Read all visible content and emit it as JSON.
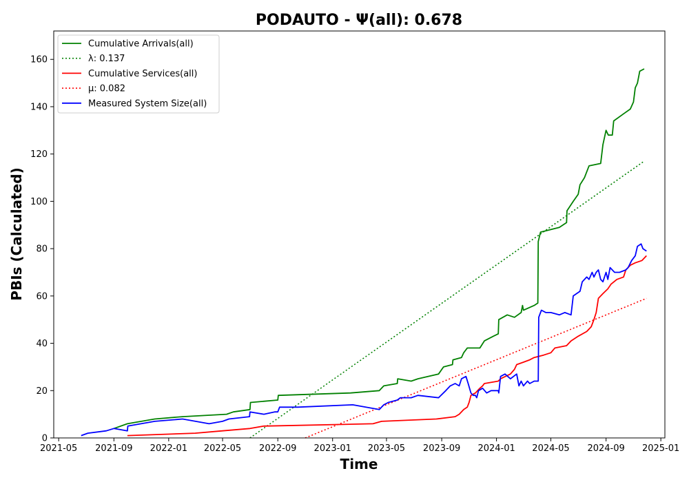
{
  "chart_data": {
    "type": "line",
    "title": "PODAUTO -  Ψ(all): 0.678",
    "xlabel": "Time",
    "ylabel": "PBIs (Calculated)",
    "x_ticks": [
      "2021-05",
      "2021-09",
      "2022-01",
      "2022-05",
      "2022-09",
      "2023-01",
      "2023-05",
      "2023-09",
      "2024-01",
      "2024-05",
      "2024-09",
      "2025-01"
    ],
    "y_ticks": [
      0,
      20,
      40,
      60,
      80,
      100,
      120,
      140,
      160
    ],
    "xlim": [
      "2021-04-20",
      "2025-01-10"
    ],
    "ylim": [
      0,
      172
    ],
    "grid": false,
    "legend_position": "top-left",
    "series": [
      {
        "name": "Cumulative Arrivals(all)",
        "color": "#008000",
        "style": "solid",
        "points": [
          [
            "2021-09-01",
            4
          ],
          [
            "2021-10-01",
            6
          ],
          [
            "2021-12-01",
            8
          ],
          [
            "2022-02-01",
            9
          ],
          [
            "2022-05-10",
            10
          ],
          [
            "2022-05-25",
            11
          ],
          [
            "2022-07-01",
            12
          ],
          [
            "2022-07-02",
            15
          ],
          [
            "2022-09-01",
            16
          ],
          [
            "2022-09-02",
            18
          ],
          [
            "2023-02-10",
            19
          ],
          [
            "2023-04-15",
            20
          ],
          [
            "2023-04-25",
            22
          ],
          [
            "2023-05-25",
            23
          ],
          [
            "2023-05-26",
            25
          ],
          [
            "2023-06-25",
            24
          ],
          [
            "2023-07-10",
            25
          ],
          [
            "2023-08-25",
            27
          ],
          [
            "2023-09-05",
            30
          ],
          [
            "2023-09-25",
            31
          ],
          [
            "2023-09-26",
            33
          ],
          [
            "2023-10-15",
            34
          ],
          [
            "2023-10-20",
            36
          ],
          [
            "2023-10-28",
            38
          ],
          [
            "2023-11-25",
            38
          ],
          [
            "2023-12-05",
            41
          ],
          [
            "2023-12-25",
            43
          ],
          [
            "2024-01-05",
            44
          ],
          [
            "2024-01-06",
            50
          ],
          [
            "2024-01-25",
            52
          ],
          [
            "2024-02-10",
            51
          ],
          [
            "2024-02-25",
            53
          ],
          [
            "2024-02-28",
            56
          ],
          [
            "2024-03-01",
            54
          ],
          [
            "2024-03-25",
            56
          ],
          [
            "2024-04-02",
            57
          ],
          [
            "2024-04-03",
            83
          ],
          [
            "2024-04-08",
            87
          ],
          [
            "2024-05-20",
            89
          ],
          [
            "2024-06-05",
            91
          ],
          [
            "2024-06-06",
            96
          ],
          [
            "2024-06-20",
            100
          ],
          [
            "2024-07-01",
            103
          ],
          [
            "2024-07-05",
            107
          ],
          [
            "2024-07-15",
            110
          ],
          [
            "2024-07-25",
            115
          ],
          [
            "2024-08-20",
            116
          ],
          [
            "2024-08-25",
            124
          ],
          [
            "2024-09-01",
            130
          ],
          [
            "2024-09-06",
            128
          ],
          [
            "2024-09-15",
            128
          ],
          [
            "2024-09-18",
            134
          ],
          [
            "2024-10-10",
            137
          ],
          [
            "2024-10-25",
            139
          ],
          [
            "2024-11-01",
            142
          ],
          [
            "2024-11-05",
            148
          ],
          [
            "2024-11-10",
            150
          ],
          [
            "2024-11-15",
            155
          ],
          [
            "2024-11-25",
            156
          ]
        ]
      },
      {
        "name": "λ: 0.137",
        "color": "#008000",
        "style": "dotted",
        "points": [
          [
            "2022-07-01",
            0
          ],
          [
            "2024-11-25",
            117
          ]
        ]
      },
      {
        "name": "Cumulative Services(all)",
        "color": "#ff0000",
        "style": "solid",
        "points": [
          [
            "2021-10-01",
            1
          ],
          [
            "2022-03-01",
            2
          ],
          [
            "2022-05-01",
            3
          ],
          [
            "2022-07-01",
            4
          ],
          [
            "2022-08-01",
            5
          ],
          [
            "2023-04-01",
            6
          ],
          [
            "2023-04-20",
            7
          ],
          [
            "2023-08-20",
            8
          ],
          [
            "2023-10-01",
            9
          ],
          [
            "2023-10-10",
            10
          ],
          [
            "2023-10-20",
            12
          ],
          [
            "2023-10-28",
            13
          ],
          [
            "2023-11-01",
            15
          ],
          [
            "2023-11-05",
            18
          ],
          [
            "2023-11-15",
            19
          ],
          [
            "2023-11-20",
            20
          ],
          [
            "2023-11-25",
            21
          ],
          [
            "2023-12-01",
            22
          ],
          [
            "2023-12-05",
            23
          ],
          [
            "2024-01-05",
            24
          ],
          [
            "2024-01-10",
            25
          ],
          [
            "2024-02-01",
            27
          ],
          [
            "2024-02-10",
            29
          ],
          [
            "2024-02-15",
            31
          ],
          [
            "2024-03-01",
            32
          ],
          [
            "2024-03-15",
            33
          ],
          [
            "2024-03-25",
            34
          ],
          [
            "2024-04-15",
            35
          ],
          [
            "2024-05-01",
            36
          ],
          [
            "2024-05-10",
            38
          ],
          [
            "2024-06-05",
            39
          ],
          [
            "2024-06-15",
            41
          ],
          [
            "2024-07-01",
            43
          ],
          [
            "2024-07-20",
            45
          ],
          [
            "2024-07-30",
            47
          ],
          [
            "2024-08-05",
            50
          ],
          [
            "2024-08-10",
            53
          ],
          [
            "2024-08-15",
            59
          ],
          [
            "2024-08-25",
            61
          ],
          [
            "2024-09-05",
            63
          ],
          [
            "2024-09-12",
            65
          ],
          [
            "2024-09-25",
            67
          ],
          [
            "2024-10-10",
            68
          ],
          [
            "2024-10-15",
            71
          ],
          [
            "2024-10-25",
            73
          ],
          [
            "2024-11-05",
            74
          ],
          [
            "2024-11-20",
            75
          ],
          [
            "2024-11-30",
            77
          ]
        ]
      },
      {
        "name": "μ: 0.082",
        "color": "#ff0000",
        "style": "dotted",
        "points": [
          [
            "2022-11-01",
            0
          ],
          [
            "2024-11-30",
            59
          ]
        ]
      },
      {
        "name": "Measured System Size(all)",
        "color": "#0000ff",
        "style": "solid",
        "points": [
          [
            "2021-06-20",
            1
          ],
          [
            "2021-07-05",
            2
          ],
          [
            "2021-08-15",
            3
          ],
          [
            "2021-09-01",
            4
          ],
          [
            "2021-10-01",
            3
          ],
          [
            "2021-10-02",
            5
          ],
          [
            "2021-12-01",
            7
          ],
          [
            "2022-02-01",
            8
          ],
          [
            "2022-04-01",
            6
          ],
          [
            "2022-05-01",
            7
          ],
          [
            "2022-05-15",
            8
          ],
          [
            "2022-06-30",
            9
          ],
          [
            "2022-07-01",
            11
          ],
          [
            "2022-08-01",
            10
          ],
          [
            "2022-08-25",
            11
          ],
          [
            "2022-09-01",
            11
          ],
          [
            "2022-09-05",
            13
          ],
          [
            "2022-10-15",
            13
          ],
          [
            "2023-02-15",
            14
          ],
          [
            "2023-04-15",
            12
          ],
          [
            "2023-04-25",
            14
          ],
          [
            "2023-05-05",
            15
          ],
          [
            "2023-05-25",
            16
          ],
          [
            "2023-06-01",
            17
          ],
          [
            "2023-06-25",
            17
          ],
          [
            "2023-07-10",
            18
          ],
          [
            "2023-08-25",
            17
          ],
          [
            "2023-09-10",
            20
          ],
          [
            "2023-09-20",
            22
          ],
          [
            "2023-10-01",
            23
          ],
          [
            "2023-10-10",
            22
          ],
          [
            "2023-10-15",
            25
          ],
          [
            "2023-10-25",
            26
          ],
          [
            "2023-10-30",
            23
          ],
          [
            "2023-11-05",
            19
          ],
          [
            "2023-11-10",
            18
          ],
          [
            "2023-11-15",
            18
          ],
          [
            "2023-11-18",
            17
          ],
          [
            "2023-11-22",
            20
          ],
          [
            "2023-12-01",
            21
          ],
          [
            "2023-12-10",
            19
          ],
          [
            "2023-12-20",
            20
          ],
          [
            "2024-01-05",
            20
          ],
          [
            "2024-01-06",
            19
          ],
          [
            "2024-01-10",
            26
          ],
          [
            "2024-01-20",
            27
          ],
          [
            "2024-02-01",
            25
          ],
          [
            "2024-02-15",
            27
          ],
          [
            "2024-02-20",
            22
          ],
          [
            "2024-02-25",
            24
          ],
          [
            "2024-03-01",
            22
          ],
          [
            "2024-03-10",
            24
          ],
          [
            "2024-03-15",
            23
          ],
          [
            "2024-03-25",
            24
          ],
          [
            "2024-04-03",
            24
          ],
          [
            "2024-04-04",
            51
          ],
          [
            "2024-04-10",
            54
          ],
          [
            "2024-04-20",
            53
          ],
          [
            "2024-05-01",
            53
          ],
          [
            "2024-05-20",
            52
          ],
          [
            "2024-06-01",
            53
          ],
          [
            "2024-06-15",
            52
          ],
          [
            "2024-06-20",
            60
          ],
          [
            "2024-07-05",
            62
          ],
          [
            "2024-07-10",
            66
          ],
          [
            "2024-07-20",
            68
          ],
          [
            "2024-07-25",
            67
          ],
          [
            "2024-08-01",
            70
          ],
          [
            "2024-08-05",
            68
          ],
          [
            "2024-08-10",
            70
          ],
          [
            "2024-08-15",
            71
          ],
          [
            "2024-08-20",
            67
          ],
          [
            "2024-08-25",
            66
          ],
          [
            "2024-09-01",
            70
          ],
          [
            "2024-09-05",
            67
          ],
          [
            "2024-09-10",
            72
          ],
          [
            "2024-09-20",
            70
          ],
          [
            "2024-10-01",
            70
          ],
          [
            "2024-10-15",
            71
          ],
          [
            "2024-10-20",
            72
          ],
          [
            "2024-10-28",
            75
          ],
          [
            "2024-11-05",
            77
          ],
          [
            "2024-11-10",
            81
          ],
          [
            "2024-11-18",
            82
          ],
          [
            "2024-11-22",
            80
          ],
          [
            "2024-11-30",
            79
          ]
        ]
      }
    ]
  }
}
